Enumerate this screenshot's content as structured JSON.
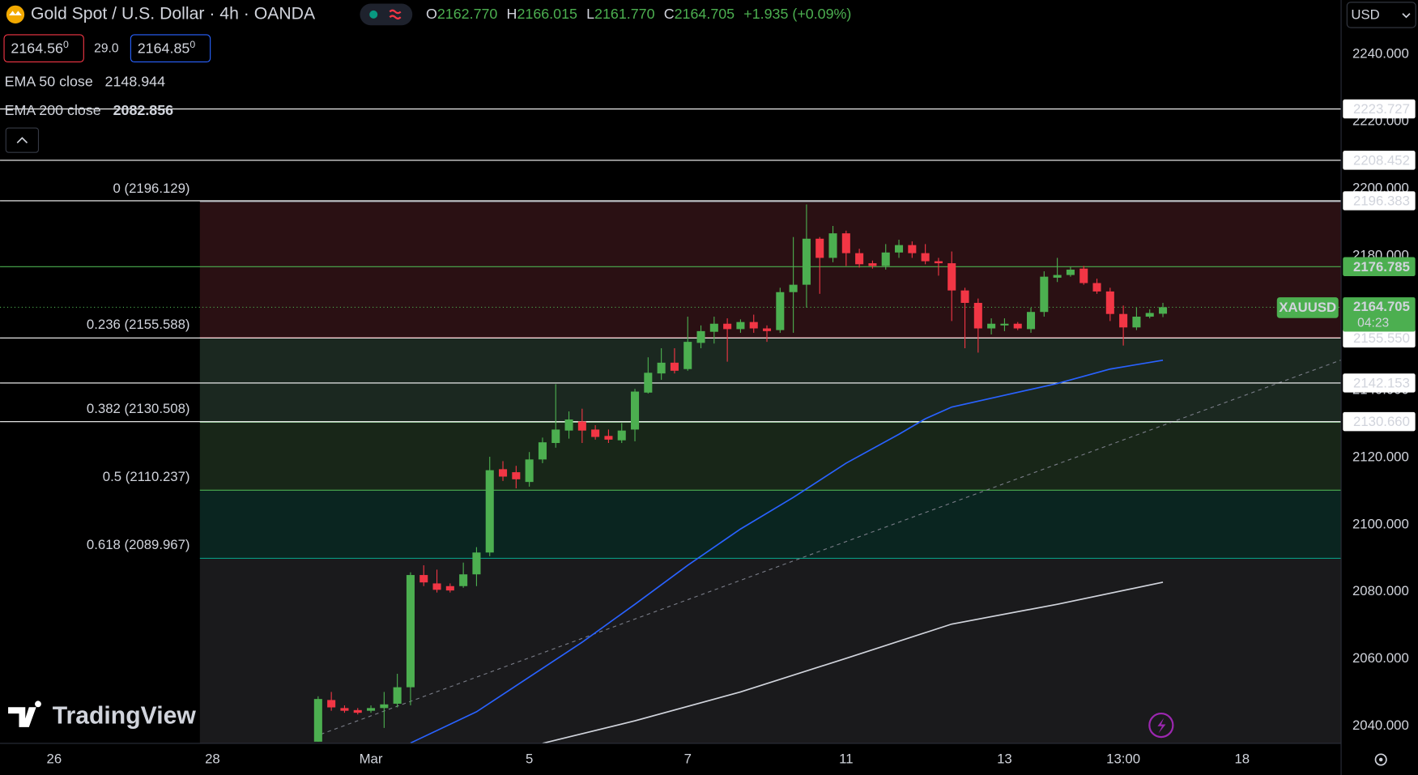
{
  "header": {
    "symbol": "Gold Spot / U.S. Dollar · 4h · OANDA",
    "ohlc": [
      {
        "key": "O",
        "value": "2162.770"
      },
      {
        "key": "H",
        "value": "2166.015"
      },
      {
        "key": "L",
        "value": "2161.770"
      },
      {
        "key": "C",
        "value": "2164.705"
      }
    ],
    "change": "+1.935 (+0.09%)",
    "bid": "2164.56",
    "bid_sup": "0",
    "spread": "29.0",
    "ask": "2164.85",
    "ask_sup": "0",
    "currency": "USD",
    "logo": "TradingView"
  },
  "chart_data": {
    "type": "candlestick",
    "up_color": "#4caf50",
    "down_color": "#f23645",
    "x": [
      0,
      1,
      2,
      3,
      4,
      5,
      6,
      7,
      8,
      9,
      10,
      11,
      12,
      13,
      14,
      15,
      16,
      17,
      18,
      19,
      20,
      21,
      22,
      23,
      24,
      25,
      26,
      27,
      28,
      29,
      30,
      31,
      32,
      33,
      34,
      35,
      36,
      37,
      38,
      39,
      40,
      41,
      42,
      43,
      44,
      45,
      46,
      47,
      48,
      49,
      50,
      51,
      52,
      53,
      54,
      55,
      56,
      57,
      58,
      59,
      60,
      61,
      62,
      63,
      64
    ],
    "open": [
      2035.4,
      2047.8,
      2045.4,
      2044.8,
      2044.6,
      2045.4,
      2046.7,
      2051.6,
      2085.0,
      2082.5,
      2081.7,
      2081.7,
      2085.2,
      2091.7,
      2116.5,
      2115.6,
      2112.7,
      2119.4,
      2124.3,
      2128.0,
      2130.7,
      2128.3,
      2126.4,
      2125.1,
      2128.3,
      2139.3,
      2145.0,
      2148.2,
      2146.3,
      2154.1,
      2157.4,
      2159.8,
      2158.2,
      2160.3,
      2158.4,
      2157.9,
      2169.2,
      2171.4,
      2185.1,
      2179.4,
      2186.7,
      2180.8,
      2177.8,
      2177.0,
      2181.0,
      2183.2,
      2180.8,
      2178.4,
      2177.8,
      2169.7,
      2166.0,
      2158.4,
      2159.3,
      2159.8,
      2158.2,
      2163.3,
      2173.5,
      2174.3,
      2176.2,
      2171.9,
      2169.4,
      2162.7,
      2158.7,
      2161.9,
      2162.77
    ],
    "high": [
      2048.9,
      2050.2,
      2046.2,
      2045.4,
      2046.2,
      2050.2,
      2055.6,
      2085.8,
      2087.9,
      2086.6,
      2082.5,
      2088.7,
      2093.3,
      2120.2,
      2118.9,
      2117.5,
      2121.6,
      2125.9,
      2141.8,
      2133.7,
      2134.5,
      2129.6,
      2128.3,
      2130.2,
      2140.4,
      2149.8,
      2152.5,
      2152.5,
      2161.9,
      2159.3,
      2161.9,
      2161.4,
      2161.1,
      2162.5,
      2159.3,
      2170.5,
      2185.6,
      2195.3,
      2185.6,
      2188.9,
      2187.5,
      2182.1,
      2178.6,
      2183.5,
      2184.8,
      2184.3,
      2183.5,
      2179.4,
      2181.3,
      2170.5,
      2167.3,
      2161.4,
      2161.4,
      2160.3,
      2164.6,
      2175.4,
      2179.4,
      2176.7,
      2177.0,
      2173.2,
      2170.5,
      2165.2,
      2164.6,
      2164.1,
      2166.015
    ],
    "low": [
      2035.4,
      2044.6,
      2044.0,
      2043.5,
      2044.0,
      2039.5,
      2045.6,
      2046.2,
      2081.7,
      2079.8,
      2079.8,
      2081.2,
      2081.7,
      2090.6,
      2113.0,
      2110.8,
      2111.3,
      2118.3,
      2122.9,
      2125.6,
      2124.3,
      2125.3,
      2124.3,
      2124.3,
      2124.8,
      2139.0,
      2143.1,
      2145.0,
      2145.8,
      2152.5,
      2153.9,
      2148.5,
      2157.1,
      2157.1,
      2154.4,
      2157.1,
      2157.1,
      2164.6,
      2168.7,
      2178.1,
      2177.0,
      2176.5,
      2176.2,
      2175.9,
      2179.4,
      2179.4,
      2177.5,
      2174.1,
      2160.6,
      2152.5,
      2151.2,
      2156.6,
      2157.6,
      2157.9,
      2157.1,
      2161.9,
      2172.2,
      2173.8,
      2171.4,
      2168.7,
      2160.6,
      2153.3,
      2157.9,
      2161.4,
      2161.77
    ],
    "close": [
      2048.1,
      2045.6,
      2044.6,
      2044.0,
      2045.4,
      2046.5,
      2051.6,
      2085.0,
      2082.8,
      2080.6,
      2080.4,
      2085.2,
      2091.7,
      2116.2,
      2114.3,
      2113.5,
      2119.4,
      2124.5,
      2128.3,
      2131.3,
      2128.0,
      2126.1,
      2125.3,
      2128.0,
      2139.6,
      2145.2,
      2148.2,
      2145.8,
      2154.4,
      2157.6,
      2159.8,
      2158.2,
      2160.3,
      2158.4,
      2157.6,
      2169.2,
      2171.4,
      2185.1,
      2179.4,
      2186.7,
      2180.8,
      2177.5,
      2177.0,
      2181.0,
      2183.2,
      2180.8,
      2178.4,
      2177.8,
      2169.7,
      2166.0,
      2158.4,
      2159.8,
      2159.8,
      2158.4,
      2163.3,
      2173.8,
      2174.3,
      2175.9,
      2171.9,
      2169.4,
      2162.7,
      2158.7,
      2161.9,
      2163.0,
      2164.705
    ],
    "series": [
      {
        "name": "EMA 50 close",
        "color": "#2962ff",
        "x": [
          7,
          12,
          20,
          24,
          28,
          32,
          36,
          40,
          44,
          46,
          48,
          52,
          56,
          60,
          64
        ],
        "values": [
          2035,
          2044.3,
          2065.0,
          2076.3,
          2087.9,
          2098.7,
          2108.1,
          2118.3,
          2126.9,
          2131.5,
          2135.0,
          2138.5,
          2142.0,
          2146.3,
          2148.944
        ]
      },
      {
        "name": "EMA 200 close",
        "color": "#d1d4dc",
        "x": [
          17,
          24,
          32,
          40,
          48,
          56,
          64
        ],
        "values": [
          2034.9,
          2041.6,
          2050.2,
          2060.2,
          2070.4,
          2076.3,
          2082.856
        ]
      }
    ],
    "trendline": {
      "color": "#787b86",
      "x": [
        0.2,
        77.5
      ],
      "values": [
        2037.6,
        2149.0
      ]
    },
    "fib_levels": [
      {
        "label": "0 (2196.129)",
        "value": 2196.129,
        "color": "#787b86",
        "fill": "#2a1013"
      },
      {
        "label": "0.236 (2155.588)",
        "value": 2155.588,
        "color": "#f23645",
        "fill": "#1b2820"
      },
      {
        "label": "0.382 (2130.508)",
        "value": 2130.508,
        "color": "#81c784",
        "fill": "#182618"
      },
      {
        "label": "0.5 (2110.237)",
        "value": 2110.237,
        "color": "#4caf50",
        "fill": "#0a2520"
      },
      {
        "label": "0.618 (2089.967)",
        "value": 2089.967,
        "color": "#089981",
        "fill": "#1a1a1c"
      }
    ],
    "price_lines": [
      {
        "value": 2223.727,
        "label": "2223.727",
        "color": "#ffffff"
      },
      {
        "value": 2208.452,
        "label": "2208.452",
        "color": "#ffffff"
      },
      {
        "value": 2196.383,
        "label": "2196.383",
        "color": "#ffffff"
      },
      {
        "value": 2176.785,
        "label": "2176.785",
        "color": "#4caf50"
      },
      {
        "value": 2155.55,
        "label": "2155.550",
        "color": "#ffffff"
      },
      {
        "value": 2142.153,
        "label": "2142.153",
        "color": "#ffffff"
      },
      {
        "value": 2130.66,
        "label": "2130.660",
        "color": "#ffffff"
      }
    ],
    "last_price": {
      "name": "XAUUSD",
      "value": 2164.705,
      "countdown": "04:23",
      "color": "#4caf50"
    },
    "xlim": [
      -24.1,
      77.5
    ],
    "ylim": [
      2034.9,
      2256.15
    ],
    "xticks": [
      {
        "value": -20,
        "label": "26"
      },
      {
        "value": -8,
        "label": "28"
      },
      {
        "value": 4,
        "label": "Mar"
      },
      {
        "value": 16,
        "label": "5"
      },
      {
        "value": 28,
        "label": "7"
      },
      {
        "value": 40,
        "label": "11"
      },
      {
        "value": 52,
        "label": "13"
      },
      {
        "value": 61,
        "label": "13:00"
      },
      {
        "value": 70,
        "label": "18"
      }
    ],
    "yticks": [
      {
        "value": 2040,
        "label": "2040.000"
      },
      {
        "value": 2060,
        "label": "2060.000"
      },
      {
        "value": 2080,
        "label": "2080.000"
      },
      {
        "value": 2100,
        "label": "2100.000"
      },
      {
        "value": 2120,
        "label": "2120.000"
      },
      {
        "value": 2140,
        "label": "2140.000"
      },
      {
        "value": 2160,
        "label": "2160.000"
      },
      {
        "value": 2180,
        "label": "2180.000"
      },
      {
        "value": 2200,
        "label": "2200.000"
      },
      {
        "value": 2220,
        "label": "2220.000"
      },
      {
        "value": 2240,
        "label": "2240.000"
      }
    ]
  }
}
